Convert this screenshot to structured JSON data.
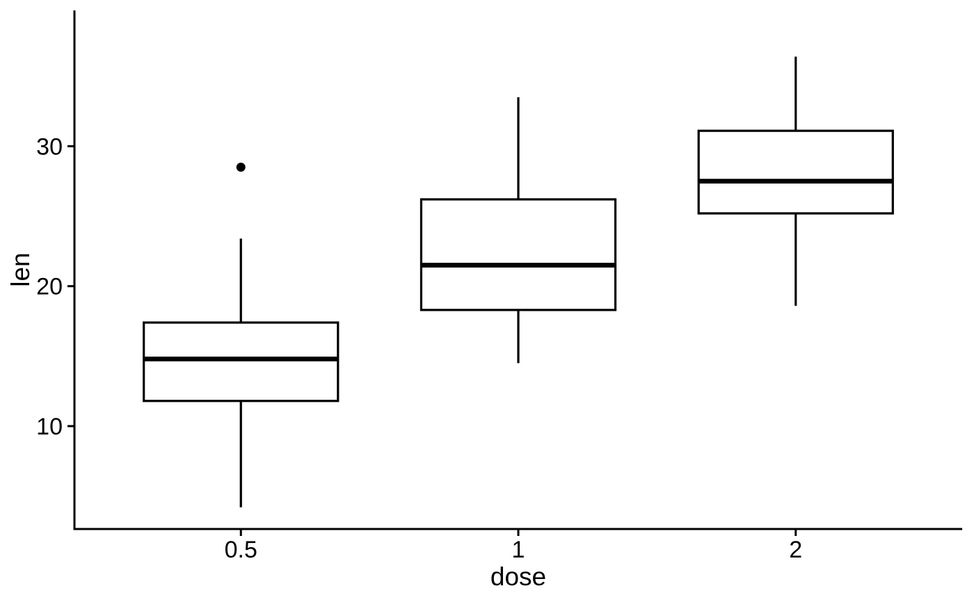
{
  "figure": {
    "background_color": "#ffffff",
    "stroke_color": "#000000",
    "text_color": "#000000"
  },
  "chart_data": {
    "type": "boxplot",
    "title": "",
    "xlabel": "dose",
    "ylabel": "len",
    "categories": [
      "0.5",
      "1",
      "2"
    ],
    "yticks": [
      10,
      20,
      30
    ],
    "ylim": [
      2.65,
      39.7
    ],
    "grid": false,
    "legend": "none",
    "box_fill": "#ffffff",
    "box_stroke": "#000000",
    "series": [
      {
        "category": "0.5",
        "whisker_low": 4.2,
        "q1": 11.8,
        "median": 14.8,
        "q3": 17.4,
        "whisker_high": 23.4,
        "outliers": [
          28.5
        ]
      },
      {
        "category": "1",
        "whisker_low": 14.5,
        "q1": 18.3,
        "median": 21.5,
        "q3": 26.2,
        "whisker_high": 33.5,
        "outliers": []
      },
      {
        "category": "2",
        "whisker_low": 18.6,
        "q1": 25.2,
        "median": 27.5,
        "q3": 31.1,
        "whisker_high": 36.4,
        "outliers": []
      }
    ]
  }
}
